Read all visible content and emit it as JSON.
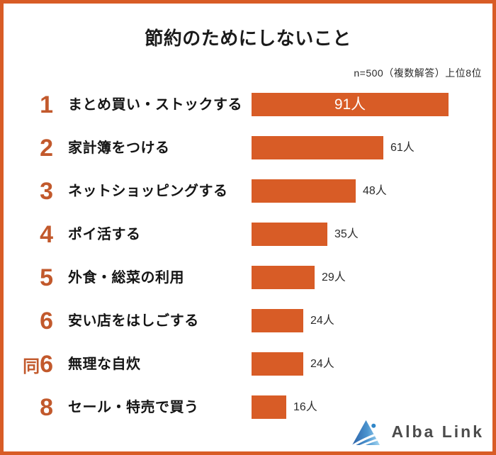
{
  "frame": {
    "border_color": "#d85c26",
    "background": "#ffffff"
  },
  "header": {
    "title": "節約のためにしないこと",
    "note": "n=500（複数解答）上位8位"
  },
  "chart_data": {
    "type": "bar",
    "orientation": "horizontal",
    "title": "節約のためにしないこと",
    "sample_note": "n=500（複数解答）上位8位",
    "unit": "人",
    "value_axis_range": [
      0,
      91
    ],
    "grid": false,
    "bar_color": "#d85c26",
    "rank_color": "#c2592c",
    "categories": [
      "まとめ買い・ストックする",
      "家計簿をつける",
      "ネットショッピングする",
      "ポイ活する",
      "外食・総菜の利用",
      "安い店をはしごする",
      "無理な自炊",
      "セール・特売で買う"
    ],
    "values": [
      91,
      61,
      48,
      35,
      29,
      24,
      24,
      16
    ],
    "rows": [
      {
        "rank": "1",
        "rank_prefix": "",
        "label": "まとめ買い・ストックする",
        "value": 91,
        "value_label": "91人",
        "value_position": "inside"
      },
      {
        "rank": "2",
        "rank_prefix": "",
        "label": "家計簿をつける",
        "value": 61,
        "value_label": "61人",
        "value_position": "outside"
      },
      {
        "rank": "3",
        "rank_prefix": "",
        "label": "ネットショッピングする",
        "value": 48,
        "value_label": "48人",
        "value_position": "outside"
      },
      {
        "rank": "4",
        "rank_prefix": "",
        "label": "ポイ活する",
        "value": 35,
        "value_label": "35人",
        "value_position": "outside"
      },
      {
        "rank": "5",
        "rank_prefix": "",
        "label": "外食・総菜の利用",
        "value": 29,
        "value_label": "29人",
        "value_position": "outside"
      },
      {
        "rank": "6",
        "rank_prefix": "",
        "label": "安い店をはしごする",
        "value": 24,
        "value_label": "24人",
        "value_position": "outside"
      },
      {
        "rank": "6",
        "rank_prefix": "同",
        "label": "無理な自炊",
        "value": 24,
        "value_label": "24人",
        "value_position": "outside"
      },
      {
        "rank": "8",
        "rank_prefix": "",
        "label": "セール・特売で買う",
        "value": 16,
        "value_label": "16人",
        "value_position": "outside"
      }
    ]
  },
  "footer": {
    "brand": "Alba Link",
    "logo_icon": "alba-link-triangle-logo",
    "logo_colors": {
      "gradient_dark": "#2b62a8",
      "gradient_mid": "#4b94cf",
      "gradient_light": "#a5d7f2",
      "dot": "#2f86c8"
    },
    "text_color": "#4b4b4b"
  }
}
